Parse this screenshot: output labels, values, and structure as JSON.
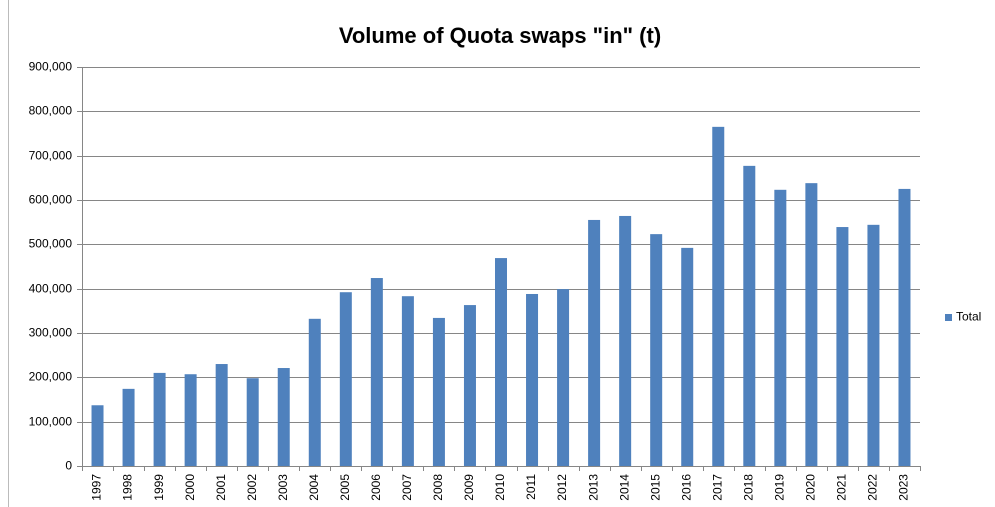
{
  "chart_data": {
    "type": "bar",
    "title": "Volume of Quota swaps \"in\" (t)",
    "categories": [
      "1997",
      "1998",
      "1999",
      "2000",
      "2001",
      "2002",
      "2003",
      "2004",
      "2005",
      "2006",
      "2007",
      "2008",
      "2009",
      "2010",
      "2011",
      "2012",
      "2013",
      "2014",
      "2015",
      "2016",
      "2017",
      "2018",
      "2019",
      "2020",
      "2021",
      "2022",
      "2023"
    ],
    "series": [
      {
        "name": "Total",
        "color": "#4f81bd",
        "values": [
          137000,
          174000,
          210000,
          207000,
          230000,
          198000,
          221000,
          332000,
          392000,
          424000,
          383000,
          334000,
          363000,
          469000,
          388000,
          399000,
          555000,
          564000,
          523000,
          492000,
          765000,
          677000,
          623000,
          638000,
          539000,
          544000,
          625000
        ]
      }
    ],
    "ylim": [
      0,
      900000
    ],
    "yticks": [
      0,
      {
        "value": 100000,
        "label": "100,000"
      },
      {
        "value": 200000,
        "label": "200,000"
      },
      {
        "value": 300000,
        "label": "300,000"
      },
      {
        "value": 400000,
        "label": "400,000"
      },
      {
        "value": 500000,
        "label": "500,000"
      },
      {
        "value": 600000,
        "label": "600,000"
      },
      {
        "value": 700000,
        "label": "700,000"
      },
      {
        "value": 800000,
        "label": "800,000"
      },
      {
        "value": 900000,
        "label": "900,000"
      }
    ],
    "grid": true,
    "legend": "right"
  }
}
